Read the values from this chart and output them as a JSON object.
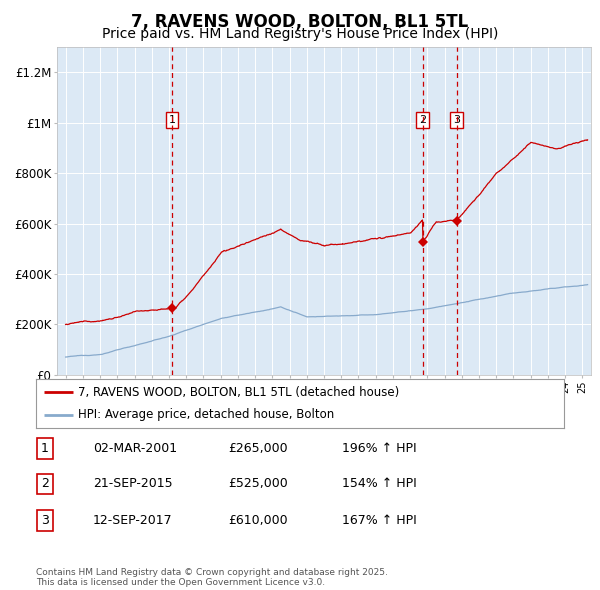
{
  "title": "7, RAVENS WOOD, BOLTON, BL1 5TL",
  "subtitle": "Price paid vs. HM Land Registry's House Price Index (HPI)",
  "title_fontsize": 12,
  "subtitle_fontsize": 10,
  "fig_bg_color": "#ffffff",
  "plot_bg_color": "#dce9f5",
  "red_line_color": "#cc0000",
  "blue_line_color": "#88aacc",
  "grid_color": "#ffffff",
  "vline_color": "#cc0000",
  "ylim": [
    0,
    1300000
  ],
  "yticks": [
    0,
    200000,
    400000,
    600000,
    800000,
    1000000,
    1200000
  ],
  "ytick_labels": [
    "£0",
    "£200K",
    "£400K",
    "£600K",
    "£800K",
    "£1M",
    "£1.2M"
  ],
  "xlim": [
    1994.5,
    2025.5
  ],
  "sale_markers": [
    {
      "label": "1",
      "date_x": 2001.17,
      "price": 265000
    },
    {
      "label": "2",
      "date_x": 2015.73,
      "price": 525000
    },
    {
      "label": "3",
      "date_x": 2017.7,
      "price": 610000
    }
  ],
  "legend_entries": [
    {
      "label": "7, RAVENS WOOD, BOLTON, BL1 5TL (detached house)",
      "color": "#cc0000"
    },
    {
      "label": "HPI: Average price, detached house, Bolton",
      "color": "#88aacc"
    }
  ],
  "table_rows": [
    {
      "num": "1",
      "date": "02-MAR-2001",
      "price": "£265,000",
      "hpi": "196% ↑ HPI"
    },
    {
      "num": "2",
      "date": "21-SEP-2015",
      "price": "£525,000",
      "hpi": "154% ↑ HPI"
    },
    {
      "num": "3",
      "date": "12-SEP-2017",
      "price": "£610,000",
      "hpi": "167% ↑ HPI"
    }
  ],
  "footnote": "Contains HM Land Registry data © Crown copyright and database right 2025.\nThis data is licensed under the Open Government Licence v3.0."
}
